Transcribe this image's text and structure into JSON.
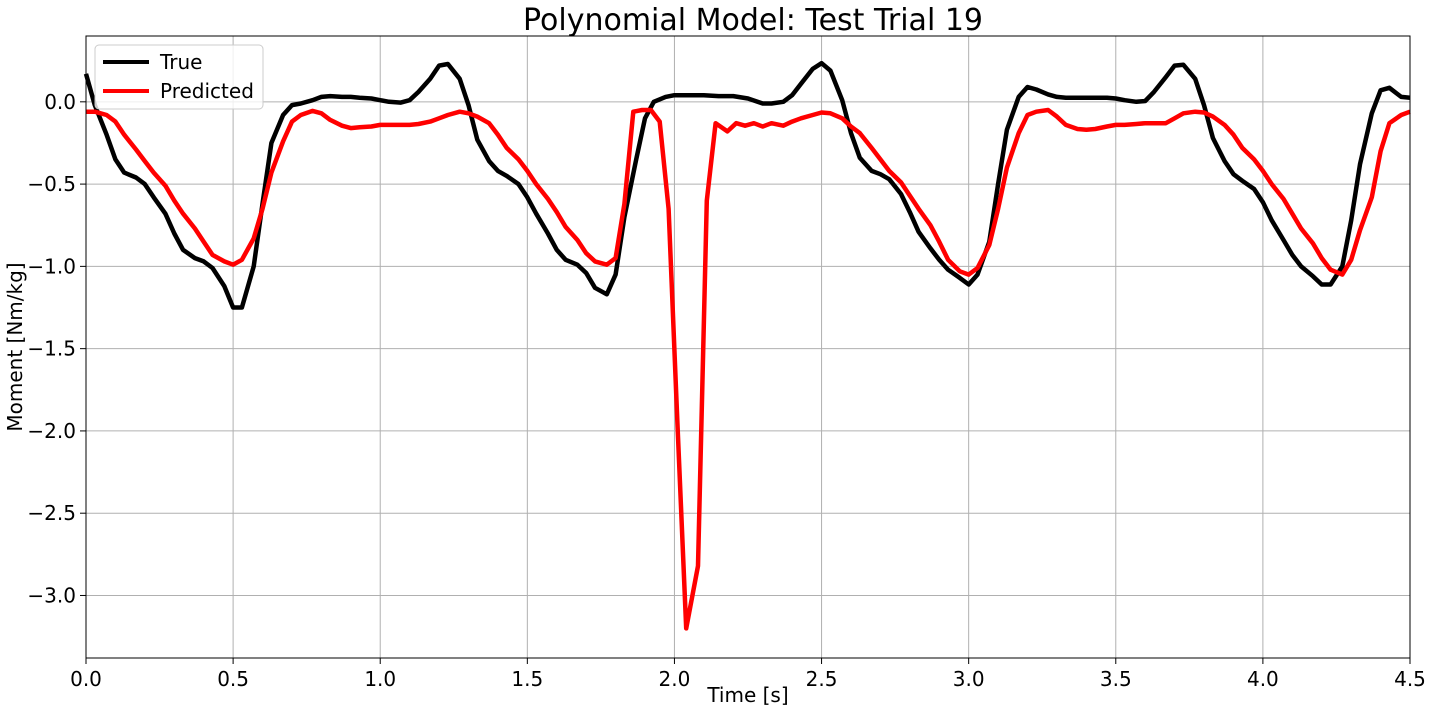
{
  "chart_data": {
    "type": "line",
    "title": "Polynomial Model: Test Trial 19",
    "xlabel": "Time [s]",
    "ylabel": "Moment [Nm/kg]",
    "xlim": [
      0.0,
      4.5
    ],
    "ylim": [
      -3.38,
      0.4
    ],
    "xticks": [
      0.0,
      0.5,
      1.0,
      1.5,
      2.0,
      2.5,
      3.0,
      3.5,
      4.0,
      4.5
    ],
    "xtick_labels": [
      "0.0",
      "0.5",
      "1.0",
      "1.5",
      "2.0",
      "2.5",
      "3.0",
      "3.5",
      "4.0",
      "4.5"
    ],
    "yticks": [
      0.0,
      -0.5,
      -1.0,
      -1.5,
      -2.0,
      -2.5,
      -3.0
    ],
    "ytick_labels": [
      "0.0",
      "−0.5",
      "−1.0",
      "−1.5",
      "−2.0",
      "−2.5",
      "−3.0"
    ],
    "grid": true,
    "legend_position": "top-left",
    "series": [
      {
        "name": "True",
        "color": "#000000",
        "x": [
          0.0,
          0.03,
          0.07,
          0.1,
          0.13,
          0.17,
          0.2,
          0.23,
          0.27,
          0.3,
          0.33,
          0.37,
          0.4,
          0.43,
          0.47,
          0.5,
          0.53,
          0.57,
          0.6,
          0.63,
          0.67,
          0.7,
          0.73,
          0.77,
          0.8,
          0.83,
          0.87,
          0.9,
          0.93,
          0.97,
          1.0,
          1.03,
          1.07,
          1.1,
          1.13,
          1.17,
          1.2,
          1.23,
          1.27,
          1.3,
          1.33,
          1.37,
          1.4,
          1.43,
          1.47,
          1.5,
          1.53,
          1.57,
          1.6,
          1.63,
          1.67,
          1.7,
          1.73,
          1.77,
          1.8,
          1.83,
          1.87,
          1.9,
          1.93,
          1.97,
          2.0,
          2.05,
          2.1,
          2.15,
          2.2,
          2.25,
          2.3,
          2.33,
          2.37,
          2.4,
          2.43,
          2.47,
          2.5,
          2.53,
          2.57,
          2.6,
          2.63,
          2.67,
          2.7,
          2.73,
          2.77,
          2.8,
          2.83,
          2.87,
          2.9,
          2.93,
          2.97,
          3.0,
          3.03,
          3.07,
          3.1,
          3.13,
          3.17,
          3.2,
          3.23,
          3.27,
          3.3,
          3.33,
          3.37,
          3.4,
          3.43,
          3.47,
          3.5,
          3.53,
          3.57,
          3.6,
          3.63,
          3.67,
          3.7,
          3.73,
          3.77,
          3.8,
          3.83,
          3.87,
          3.9,
          3.93,
          3.97,
          4.0,
          4.03,
          4.07,
          4.1,
          4.13,
          4.17,
          4.2,
          4.23,
          4.27,
          4.3,
          4.33,
          4.37,
          4.4,
          4.43,
          4.47,
          4.5
        ],
        "y": [
          0.17,
          -0.02,
          -0.2,
          -0.35,
          -0.43,
          -0.46,
          -0.5,
          -0.58,
          -0.68,
          -0.8,
          -0.9,
          -0.95,
          -0.97,
          -1.01,
          -1.12,
          -1.25,
          -1.25,
          -1.0,
          -0.62,
          -0.25,
          -0.08,
          -0.02,
          -0.01,
          0.01,
          0.03,
          0.035,
          0.03,
          0.03,
          0.025,
          0.02,
          0.01,
          0.0,
          -0.005,
          0.01,
          0.06,
          0.14,
          0.22,
          0.23,
          0.14,
          -0.02,
          -0.23,
          -0.36,
          -0.42,
          -0.45,
          -0.5,
          -0.58,
          -0.68,
          -0.8,
          -0.9,
          -0.96,
          -0.99,
          -1.04,
          -1.13,
          -1.17,
          -1.05,
          -0.7,
          -0.35,
          -0.1,
          0.0,
          0.03,
          0.04,
          0.04,
          0.04,
          0.035,
          0.035,
          0.02,
          -0.01,
          -0.01,
          0.0,
          0.04,
          0.11,
          0.2,
          0.235,
          0.19,
          0.01,
          -0.19,
          -0.34,
          -0.42,
          -0.44,
          -0.47,
          -0.56,
          -0.67,
          -0.79,
          -0.89,
          -0.96,
          -1.02,
          -1.07,
          -1.11,
          -1.05,
          -0.85,
          -0.5,
          -0.17,
          0.03,
          0.09,
          0.075,
          0.045,
          0.03,
          0.025,
          0.025,
          0.025,
          0.025,
          0.025,
          0.02,
          0.01,
          0.0,
          0.005,
          0.06,
          0.15,
          0.22,
          0.225,
          0.14,
          -0.02,
          -0.22,
          -0.36,
          -0.44,
          -0.48,
          -0.53,
          -0.61,
          -0.72,
          -0.84,
          -0.93,
          -1.0,
          -1.06,
          -1.11,
          -1.11,
          -1.0,
          -0.72,
          -0.38,
          -0.07,
          0.07,
          0.085,
          0.03,
          0.025
        ]
      },
      {
        "name": "Predicted",
        "color": "#ff0000",
        "x": [
          0.0,
          0.03,
          0.07,
          0.1,
          0.13,
          0.17,
          0.2,
          0.23,
          0.27,
          0.3,
          0.33,
          0.37,
          0.4,
          0.43,
          0.47,
          0.5,
          0.53,
          0.57,
          0.6,
          0.63,
          0.67,
          0.7,
          0.73,
          0.77,
          0.8,
          0.83,
          0.87,
          0.9,
          0.93,
          0.97,
          1.0,
          1.03,
          1.07,
          1.1,
          1.13,
          1.17,
          1.2,
          1.23,
          1.27,
          1.3,
          1.33,
          1.37,
          1.4,
          1.43,
          1.47,
          1.5,
          1.53,
          1.57,
          1.6,
          1.63,
          1.67,
          1.7,
          1.73,
          1.77,
          1.8,
          1.83,
          1.86,
          1.89,
          1.92,
          1.95,
          1.98,
          2.01,
          2.04,
          2.08,
          2.11,
          2.14,
          2.18,
          2.21,
          2.24,
          2.27,
          2.3,
          2.33,
          2.37,
          2.4,
          2.43,
          2.47,
          2.5,
          2.53,
          2.57,
          2.6,
          2.63,
          2.67,
          2.7,
          2.73,
          2.77,
          2.8,
          2.83,
          2.87,
          2.9,
          2.93,
          2.97,
          3.0,
          3.03,
          3.07,
          3.1,
          3.13,
          3.17,
          3.2,
          3.23,
          3.27,
          3.3,
          3.33,
          3.37,
          3.4,
          3.43,
          3.47,
          3.5,
          3.53,
          3.57,
          3.6,
          3.63,
          3.67,
          3.7,
          3.73,
          3.77,
          3.8,
          3.83,
          3.87,
          3.9,
          3.93,
          3.97,
          4.0,
          4.03,
          4.07,
          4.1,
          4.13,
          4.17,
          4.2,
          4.23,
          4.27,
          4.3,
          4.33,
          4.37,
          4.4,
          4.43,
          4.47,
          4.5
        ],
        "y": [
          -0.06,
          -0.06,
          -0.08,
          -0.12,
          -0.2,
          -0.29,
          -0.36,
          -0.43,
          -0.51,
          -0.6,
          -0.68,
          -0.77,
          -0.85,
          -0.93,
          -0.97,
          -0.99,
          -0.96,
          -0.83,
          -0.65,
          -0.43,
          -0.24,
          -0.12,
          -0.08,
          -0.055,
          -0.07,
          -0.11,
          -0.145,
          -0.16,
          -0.155,
          -0.15,
          -0.14,
          -0.14,
          -0.14,
          -0.14,
          -0.135,
          -0.12,
          -0.1,
          -0.08,
          -0.06,
          -0.07,
          -0.09,
          -0.13,
          -0.2,
          -0.28,
          -0.35,
          -0.42,
          -0.5,
          -0.59,
          -0.67,
          -0.76,
          -0.84,
          -0.92,
          -0.97,
          -0.99,
          -0.95,
          -0.62,
          -0.06,
          -0.05,
          -0.05,
          -0.12,
          -0.65,
          -1.95,
          -3.2,
          -2.82,
          -0.6,
          -0.13,
          -0.18,
          -0.13,
          -0.145,
          -0.13,
          -0.15,
          -0.13,
          -0.145,
          -0.12,
          -0.1,
          -0.08,
          -0.065,
          -0.07,
          -0.1,
          -0.15,
          -0.19,
          -0.28,
          -0.35,
          -0.42,
          -0.49,
          -0.57,
          -0.65,
          -0.75,
          -0.85,
          -0.96,
          -1.03,
          -1.05,
          -1.01,
          -0.87,
          -0.65,
          -0.4,
          -0.19,
          -0.08,
          -0.06,
          -0.05,
          -0.09,
          -0.14,
          -0.165,
          -0.17,
          -0.165,
          -0.15,
          -0.14,
          -0.14,
          -0.135,
          -0.13,
          -0.13,
          -0.13,
          -0.1,
          -0.07,
          -0.06,
          -0.065,
          -0.09,
          -0.14,
          -0.2,
          -0.28,
          -0.35,
          -0.42,
          -0.5,
          -0.59,
          -0.68,
          -0.77,
          -0.86,
          -0.95,
          -1.02,
          -1.05,
          -0.96,
          -0.78,
          -0.58,
          -0.3,
          -0.13,
          -0.08,
          -0.06
        ]
      }
    ]
  }
}
